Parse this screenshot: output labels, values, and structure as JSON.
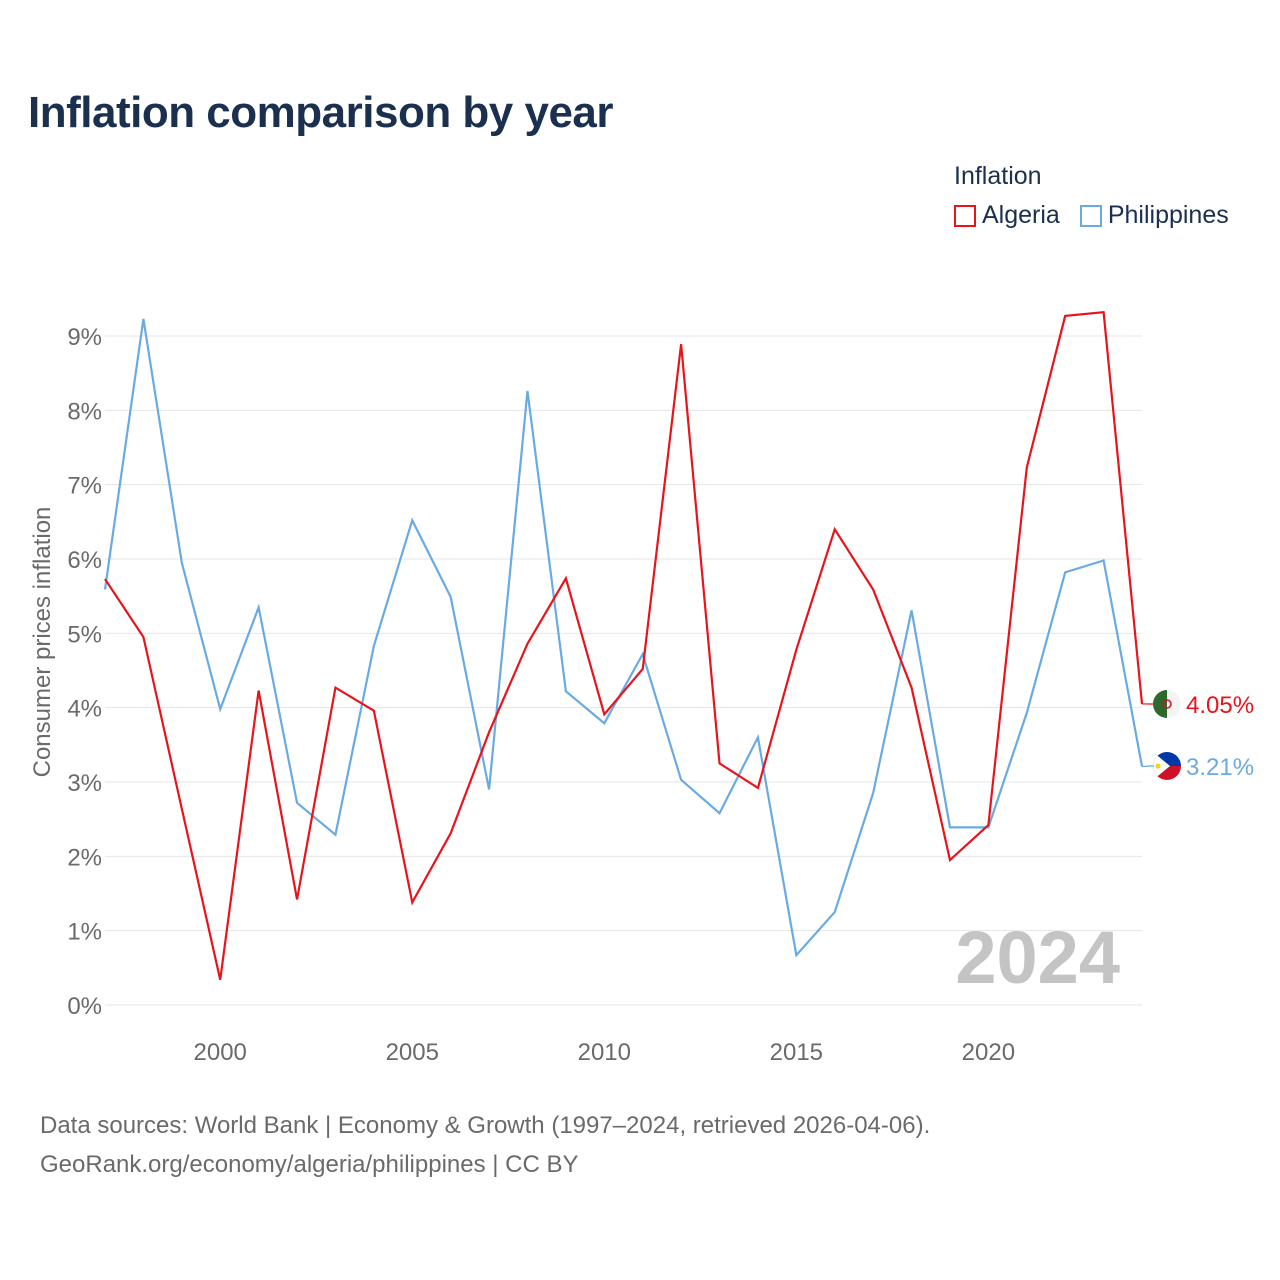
{
  "title": "Inflation comparison by year",
  "legend": {
    "title": "Inflation",
    "items": [
      {
        "name": "Algeria",
        "color": "#e8141b"
      },
      {
        "name": "Philippines",
        "color": "#6aaae4"
      }
    ]
  },
  "chart_data": {
    "type": "line",
    "title": "Inflation comparison by year",
    "xlabel": "",
    "ylabel": "Consumer prices inflation",
    "xlim": [
      1997,
      2024
    ],
    "ylim": [
      0,
      9
    ],
    "x_ticks": [
      2000,
      2005,
      2010,
      2015,
      2020
    ],
    "y_ticks": [
      "0%",
      "1%",
      "2%",
      "3%",
      "4%",
      "5%",
      "6%",
      "7%",
      "8%",
      "9%"
    ],
    "grid": true,
    "x": [
      1997,
      1998,
      1999,
      2000,
      2001,
      2002,
      2003,
      2004,
      2005,
      2006,
      2007,
      2008,
      2009,
      2010,
      2011,
      2012,
      2013,
      2014,
      2015,
      2016,
      2017,
      2018,
      2019,
      2020,
      2021,
      2022,
      2023,
      2024
    ],
    "series": [
      {
        "name": "Algeria",
        "color": "#e8141b",
        "values": [
          5.73,
          4.95,
          2.64,
          0.34,
          4.23,
          1.42,
          4.27,
          3.96,
          1.38,
          2.31,
          3.67,
          4.86,
          5.74,
          3.91,
          4.52,
          8.89,
          3.25,
          2.92,
          4.78,
          6.4,
          5.59,
          4.27,
          1.95,
          2.42,
          7.23,
          9.27,
          9.32,
          4.05
        ]
      },
      {
        "name": "Philippines",
        "color": "#6aaae4",
        "values": [
          5.59,
          9.23,
          5.95,
          3.98,
          5.35,
          2.72,
          2.29,
          4.83,
          6.52,
          5.49,
          2.9,
          8.26,
          4.22,
          3.79,
          4.72,
          3.03,
          2.58,
          3.6,
          0.67,
          1.25,
          2.85,
          5.31,
          2.39,
          2.39,
          3.93,
          5.82,
          5.98,
          3.21
        ]
      }
    ],
    "end_labels": [
      {
        "series": "Algeria",
        "text": "4.05%",
        "color": "#e8141b"
      },
      {
        "series": "Philippines",
        "text": "3.21%",
        "color": "#6aaae4"
      }
    ],
    "watermark_year": "2024"
  },
  "footer": {
    "line1": "Data sources: World Bank | Economy & Growth (1997–2024, retrieved 2026-04-06).",
    "line2": "GeoRank.org/economy/algeria/philippines | CC BY"
  }
}
